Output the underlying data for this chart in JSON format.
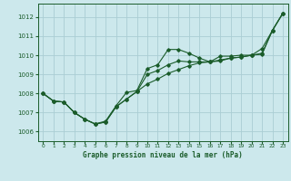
{
  "title": "Graphe pression niveau de la mer (hPa)",
  "ylim": [
    1005.5,
    1012.7
  ],
  "xlim": [
    -0.5,
    23.5
  ],
  "yticks": [
    1006,
    1007,
    1008,
    1009,
    1010,
    1011,
    1012
  ],
  "xticks": [
    0,
    1,
    2,
    3,
    4,
    5,
    6,
    7,
    8,
    9,
    10,
    11,
    12,
    13,
    14,
    15,
    16,
    17,
    18,
    19,
    20,
    21,
    22,
    23
  ],
  "background_color": "#cce8ec",
  "grid_color": "#aacdd4",
  "line_color": "#1a5c2a",
  "label_color": "#1a5c2a",
  "series": [
    [
      1008.0,
      1007.6,
      1007.55,
      1007.0,
      1006.65,
      1006.4,
      1006.5,
      1007.3,
      1007.7,
      1008.1,
      1008.5,
      1008.75,
      1009.05,
      1009.25,
      1009.45,
      1009.6,
      1009.65,
      1009.7,
      1009.85,
      1009.9,
      1010.0,
      1010.05,
      1011.3,
      1012.2
    ],
    [
      1008.0,
      1007.6,
      1007.55,
      1007.0,
      1006.65,
      1006.4,
      1006.55,
      1007.35,
      1008.05,
      1008.15,
      1009.3,
      1009.5,
      1010.3,
      1010.3,
      1010.1,
      1009.85,
      1009.65,
      1009.95,
      1009.95,
      1010.0,
      1010.0,
      1010.1,
      1011.3,
      1012.2
    ],
    [
      1008.0,
      1007.6,
      1007.55,
      1007.0,
      1006.65,
      1006.4,
      1006.5,
      1007.3,
      1007.7,
      1008.1,
      1009.0,
      1009.2,
      1009.5,
      1009.7,
      1009.65,
      1009.65,
      1009.65,
      1009.75,
      1009.85,
      1009.9,
      1010.0,
      1010.35,
      1011.3,
      1012.2
    ]
  ]
}
